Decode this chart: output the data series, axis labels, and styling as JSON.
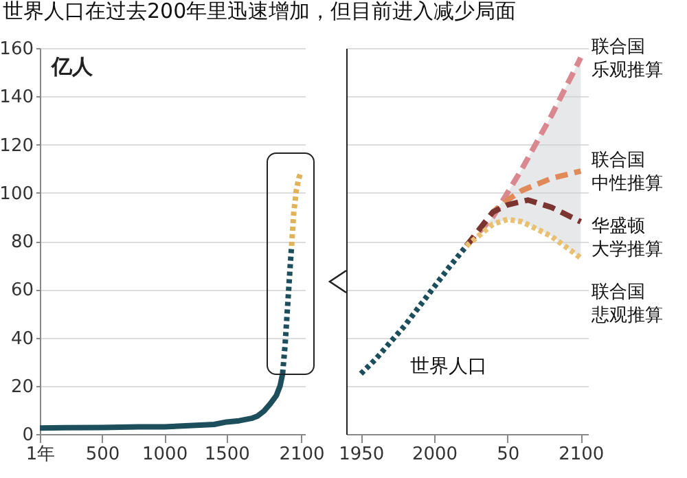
{
  "chart_data": [
    {
      "type": "line",
      "title": "世界人口在过去200年里迅速增加，但目前进入减少局面",
      "ylabel": "亿人",
      "xlim": [
        1,
        2130
      ],
      "ylim": [
        0,
        160
      ],
      "xticks": [
        {
          "value": 1,
          "label": "1年"
        },
        500,
        1000,
        1500,
        2100
      ],
      "yticks": [
        0,
        20,
        40,
        60,
        80,
        100,
        120,
        140,
        160
      ],
      "grid": "y",
      "legend": false,
      "marker": "none",
      "series": [
        {
          "color": "#1d4e5c",
          "line_style": "solid",
          "x": [
            1,
            200,
            500,
            800,
            1000,
            1200,
            1400,
            1500,
            1600,
            1700,
            1750,
            1800,
            1850,
            1900,
            1930,
            1950
          ],
          "values": [
            2.5,
            2.6,
            2.7,
            3,
            3,
            3.5,
            4,
            5,
            5.5,
            6.5,
            7.5,
            9.5,
            12.5,
            16,
            20,
            25
          ]
        },
        {
          "color": "#1d4e5c",
          "line_style": "dotted",
          "x": [
            1950,
            1970,
            1990,
            2000,
            2010,
            2022
          ],
          "values": [
            25,
            37,
            53,
            61,
            69,
            78
          ]
        },
        {
          "color": "#e0b25a",
          "line_style": "dotted",
          "x": [
            2022,
            2040,
            2060,
            2080,
            2100
          ],
          "values": [
            78,
            92,
            101,
            106,
            109
          ]
        }
      ]
    },
    {
      "type": "line",
      "xlim": [
        1940,
        2105
      ],
      "ylim": [
        0,
        160
      ],
      "xticks": [
        1950,
        2000,
        {
          "value": 2050,
          "label": "50"
        },
        2100
      ],
      "yticks": [
        0,
        20,
        40,
        60,
        80,
        100,
        120,
        140,
        160
      ],
      "grid": "y",
      "legend": false,
      "marker": "none",
      "tick_labels": "x",
      "series": [
        {
          "name": "世界人口",
          "color": "#1d4e5c",
          "line_style": "dotted",
          "x": [
            1950,
            1960,
            1970,
            1980,
            1990,
            2000,
            2010,
            2022
          ],
          "values": [
            25,
            31,
            38,
            45,
            53,
            61,
            69,
            78
          ]
        },
        {
          "name": "联合国乐观推算",
          "color": "#d98890",
          "line_style": "dashed",
          "x": [
            2022,
            2040,
            2050,
            2060,
            2080,
            2100
          ],
          "values": [
            78,
            90,
            100,
            110,
            132,
            156
          ]
        },
        {
          "name": "联合国中性推算",
          "color": "#e08a5a",
          "line_style": "dashed",
          "x": [
            2022,
            2040,
            2050,
            2060,
            2080,
            2100
          ],
          "values": [
            78,
            92,
            97,
            101,
            106,
            109
          ],
          "lower": [
            78,
            87,
            89,
            88,
            82,
            73
          ],
          "upper": [
            78,
            90,
            100,
            110,
            132,
            156
          ]
        },
        {
          "name": "华盛顿大学推算",
          "color": "#7a3530",
          "line_style": "dashed",
          "x": [
            2022,
            2040,
            2050,
            2064,
            2080,
            2100
          ],
          "values": [
            78,
            92,
            95,
            97,
            94,
            88
          ]
        },
        {
          "name": "联合国悲观推算",
          "color": "#e8c070",
          "line_style": "dotted",
          "x": [
            2022,
            2040,
            2050,
            2060,
            2080,
            2100
          ],
          "values": [
            78,
            87,
            89,
            88,
            82,
            73
          ]
        }
      ]
    }
  ]
}
